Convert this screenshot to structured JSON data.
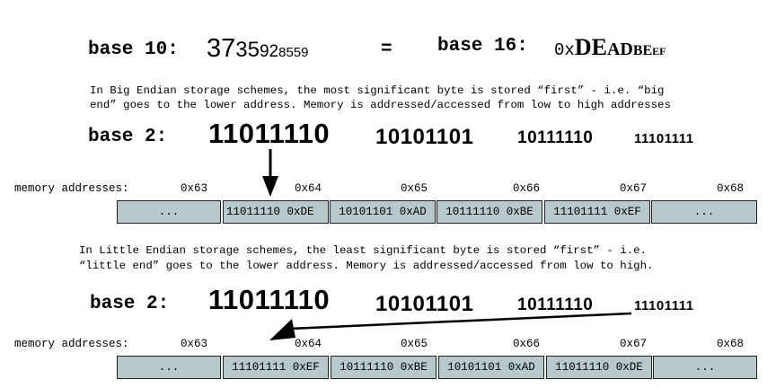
{
  "header": {
    "base10_label": "base 10:",
    "base10_digits": [
      "37",
      "35",
      "92",
      "8559"
    ],
    "equals": "=",
    "base16_label": "base 16:",
    "base16_prefix": "0x",
    "base16_bytes": [
      "DE",
      "AD",
      "BE",
      "EF"
    ]
  },
  "big_endian": {
    "description_line1": "In Big Endian storage schemes, the most significant byte is stored “first” - i.e. “big",
    "description_line2": "end” goes to the lower address. Memory is addressed/accessed from low to high addresses",
    "base2_label": "base  2:",
    "bytes": [
      "11011110",
      "10101101",
      "10111110",
      "11101111"
    ],
    "addresses_label": "memory addresses:",
    "addresses": [
      "0x63",
      "0x64",
      "0x65",
      "0x66",
      "0x67",
      "0x68"
    ],
    "cells": [
      "...",
      "11011110 0xDE",
      "10101101 0xAD",
      "10111110 0xBE",
      "11101111 0xEF",
      "..."
    ]
  },
  "little_endian": {
    "description_line1": "In Little Endian storage schemes, the least significant byte is stored “first” - i.e.",
    "description_line2": "“little end” goes to the lower address. Memory is addressed/accessed from low to high.",
    "base2_label": "base  2:",
    "bytes": [
      "11011110",
      "10101101",
      "10111110",
      "11101111"
    ],
    "addresses_label": "memory addresses:",
    "addresses": [
      "0x63",
      "0x64",
      "0x65",
      "0x66",
      "0x67",
      "0x68"
    ],
    "cells": [
      "...",
      "11101111 0xEF",
      "10111110 0xBE",
      "10101101 0xAD",
      "11011110 0xDE",
      "..."
    ]
  },
  "colors": {
    "cell_fill": "#b8c9cb",
    "border": "#222222",
    "arrow": "#000000"
  }
}
